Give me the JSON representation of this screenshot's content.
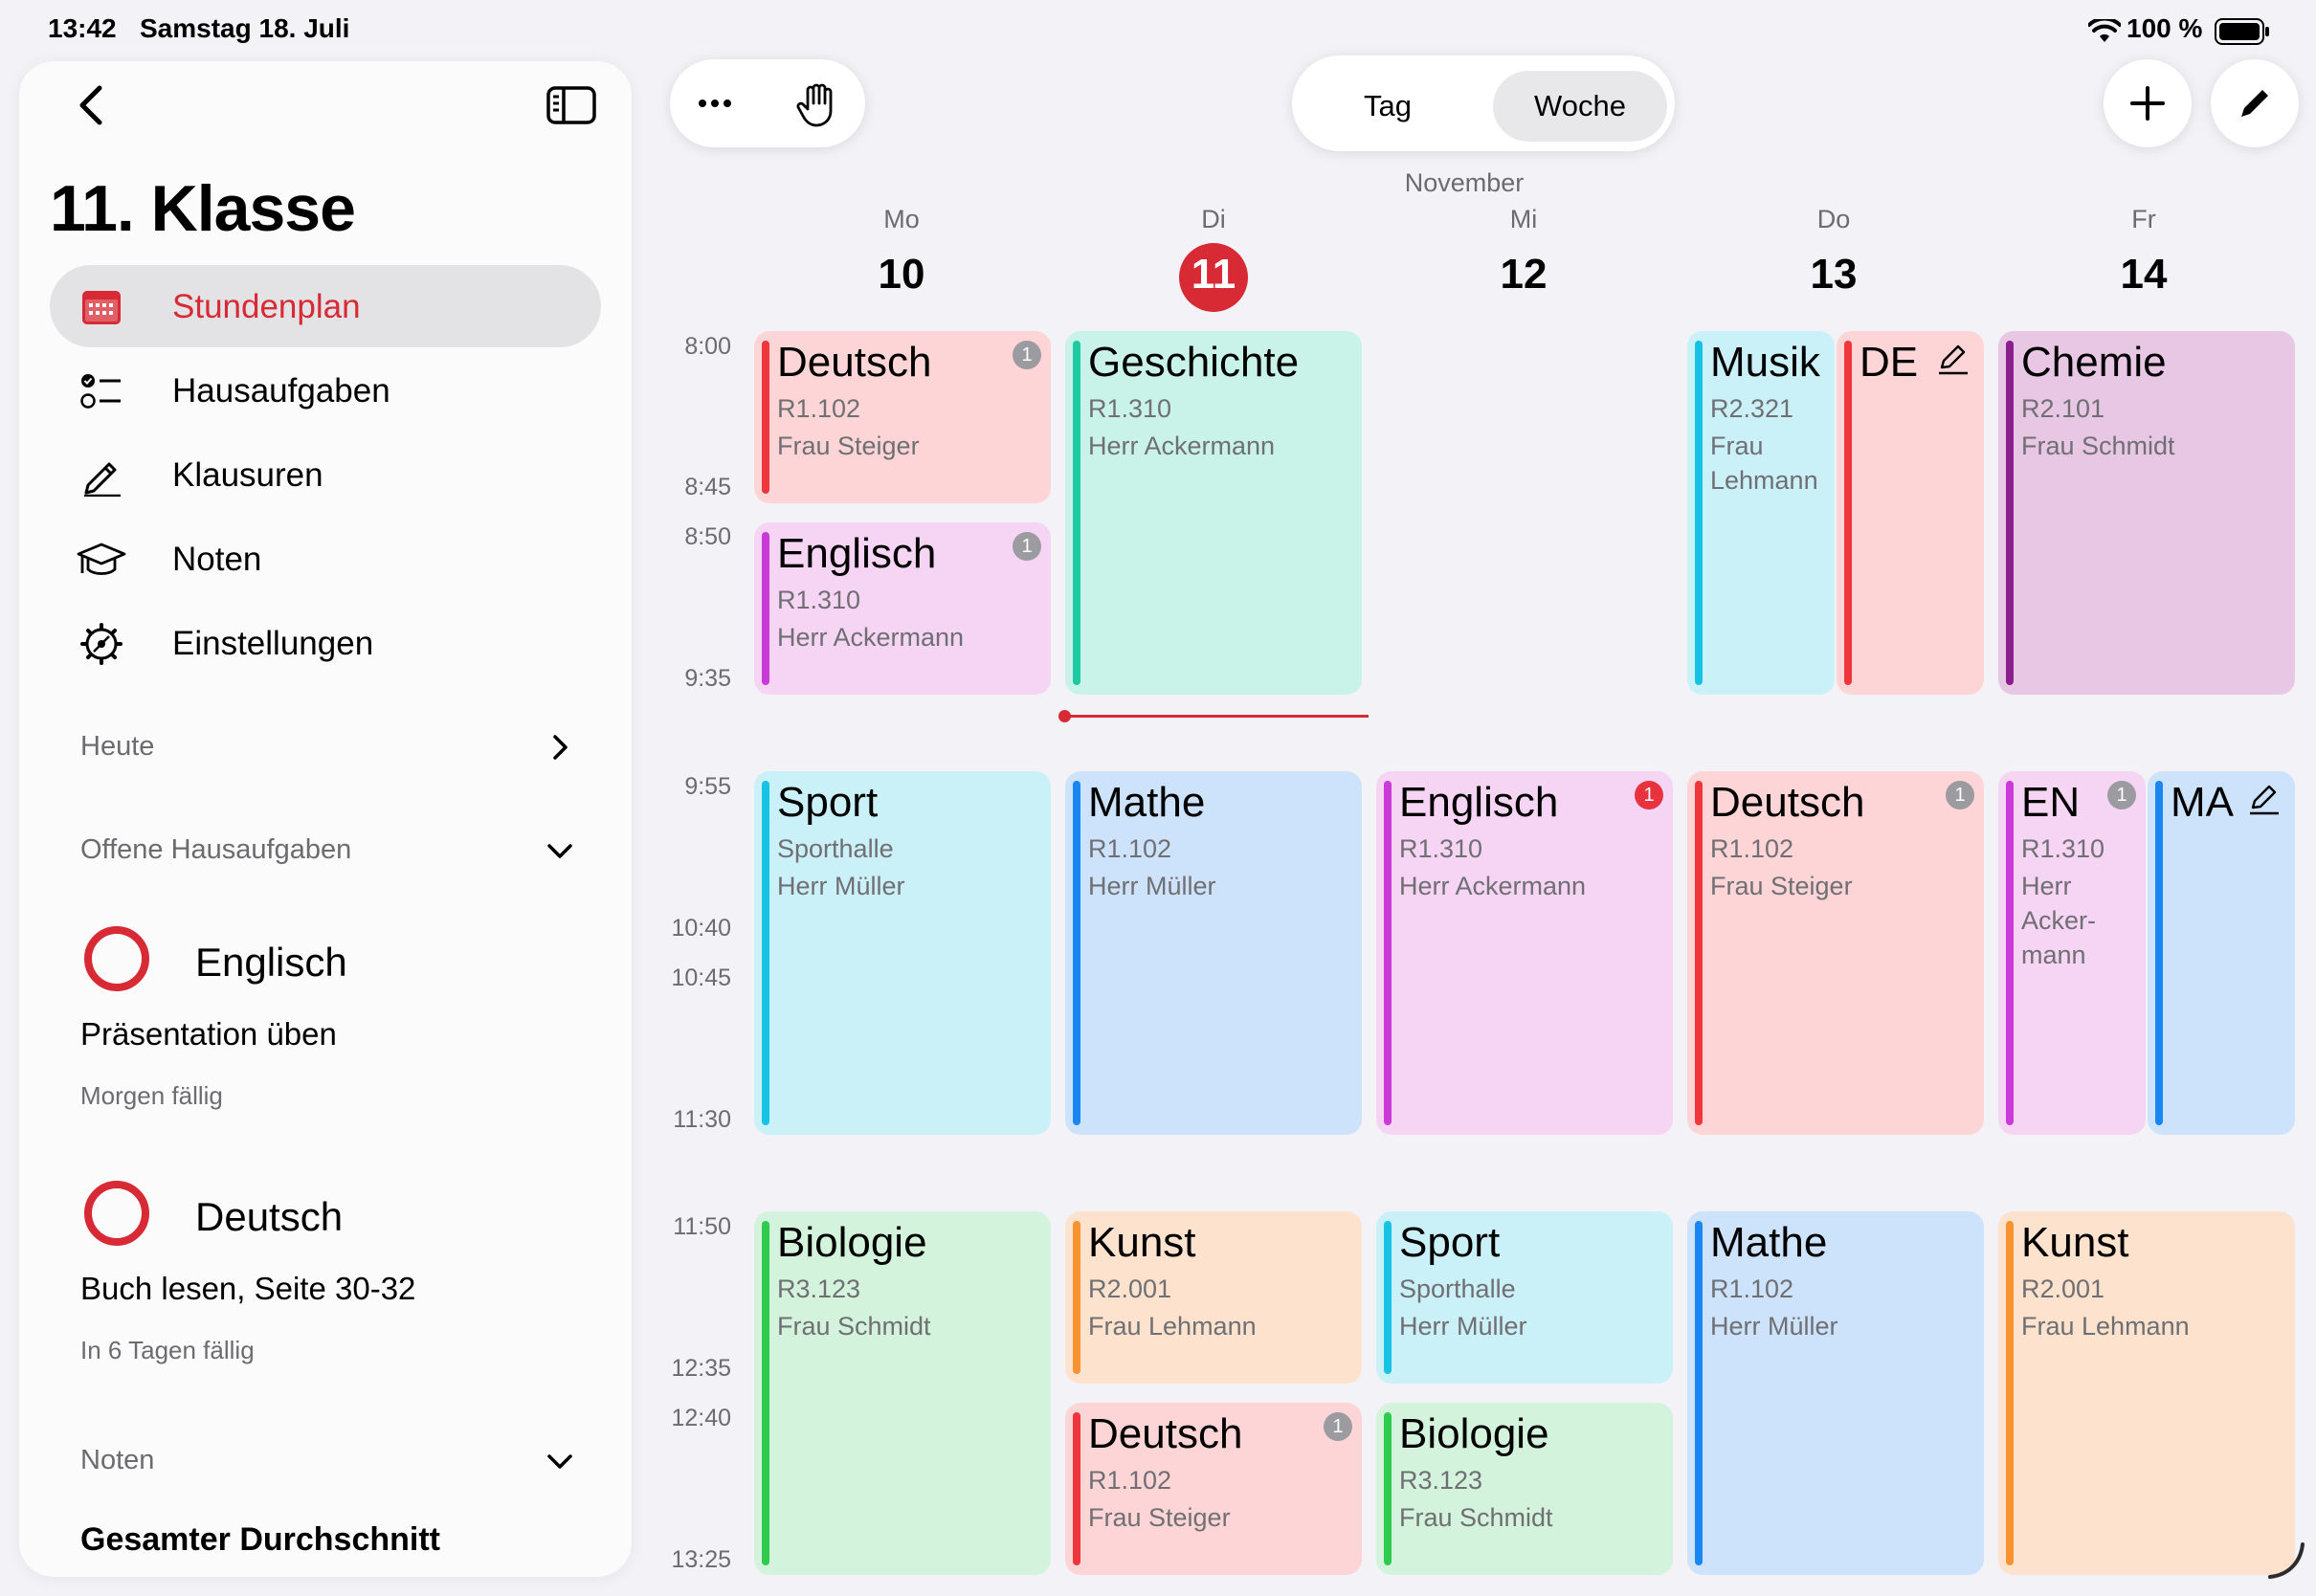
{
  "status_bar": {
    "time": "13:42",
    "date": "Samstag 18. Juli",
    "battery": "100 %"
  },
  "sidebar": {
    "title": "11. Klasse",
    "nav": [
      {
        "label": "Stundenplan",
        "icon": "calendar-icon",
        "active": true
      },
      {
        "label": "Hausaufgaben",
        "icon": "checklist-icon"
      },
      {
        "label": "Klausuren",
        "icon": "pencil-icon"
      },
      {
        "label": "Noten",
        "icon": "graduation-cap-icon"
      },
      {
        "label": "Einstellungen",
        "icon": "gear-icon"
      }
    ],
    "sections": {
      "today": "Heute",
      "open_homework": "Offene Hausaufgaben",
      "grades": "Noten"
    },
    "homework": [
      {
        "subject": "Englisch",
        "task": "Präsentation üben",
        "due": "Morgen fällig"
      },
      {
        "subject": "Deutsch",
        "task": "Buch lesen, Seite 30-32",
        "due": "In 6 Tagen fällig"
      }
    ],
    "grades_summary": "Gesamter Durchschnitt"
  },
  "toolbar": {
    "view_options": [
      "Tag",
      "Woche"
    ],
    "selected_view": "Woche"
  },
  "calendar": {
    "month": "November",
    "days": [
      {
        "name": "Mo",
        "number": "10"
      },
      {
        "name": "Di",
        "number": "11",
        "today": true
      },
      {
        "name": "Mi",
        "number": "12"
      },
      {
        "name": "Do",
        "number": "13"
      },
      {
        "name": "Fr",
        "number": "14"
      }
    ],
    "times": [
      "8:00",
      "8:45",
      "8:50",
      "9:35",
      "9:55",
      "10:40",
      "10:45",
      "11:30",
      "11:50",
      "12:35",
      "12:40",
      "13:25"
    ],
    "lessons": {
      "mo_1": {
        "subject": "Deutsch",
        "room": "R1.102",
        "teacher": "Frau Steiger",
        "badge": "1"
      },
      "mo_2": {
        "subject": "Englisch",
        "room": "R1.310",
        "teacher": "Herr Ackermann",
        "badge": "1"
      },
      "mo_3": {
        "subject": "Sport",
        "room": "Sporthalle",
        "teacher": "Herr Müller"
      },
      "mo_4": {
        "subject": "Biologie",
        "room": "R3.123",
        "teacher": "Frau Schmidt"
      },
      "di_1": {
        "subject": "Geschichte",
        "room": "R1.310",
        "teacher": "Herr Ackermann"
      },
      "di_2": {
        "subject": "Mathe",
        "room": "R1.102",
        "teacher": "Herr Müller"
      },
      "di_3": {
        "subject": "Kunst",
        "room": "R2.001",
        "teacher": "Frau Lehmann"
      },
      "di_4": {
        "subject": "Deutsch",
        "room": "R1.102",
        "teacher": "Frau Steiger",
        "badge": "1"
      },
      "mi_1": {
        "subject": "Englisch",
        "room": "R1.310",
        "teacher": "Herr Ackermann",
        "badge": "1"
      },
      "mi_2": {
        "subject": "Sport",
        "room": "Sporthalle",
        "teacher": "Herr Müller"
      },
      "mi_3": {
        "subject": "Biologie",
        "room": "R3.123",
        "teacher": "Frau Schmidt"
      },
      "do_1": {
        "subject": "Musik",
        "room": "R2.321",
        "teacher_line1": "Frau",
        "teacher_line2": "Lehmann"
      },
      "do_1b": {
        "subject": "DE"
      },
      "do_2": {
        "subject": "Deutsch",
        "room": "R1.102",
        "teacher": "Frau Steiger",
        "badge": "1"
      },
      "do_3": {
        "subject": "Mathe",
        "room": "R1.102",
        "teacher": "Herr Müller"
      },
      "fr_1": {
        "subject": "Chemie",
        "room": "R2.101",
        "teacher": "Frau Schmidt"
      },
      "fr_2": {
        "subject": "EN",
        "room": "R1.310",
        "teacher_line1": "Herr",
        "teacher_line2": "Acker-",
        "teacher_line3": "mann",
        "badge": "1"
      },
      "fr_2b": {
        "subject": "MA"
      },
      "fr_3": {
        "subject": "Kunst",
        "room": "R2.001",
        "teacher": "Frau Lehmann"
      }
    }
  },
  "colors": {
    "accent": "#d72a35",
    "deutsch_bg": "#fdd5d6",
    "deutsch_bar": "#f0363d",
    "englisch_bg": "#f5d4f4",
    "englisch_bar": "#c93ad9",
    "sport_bg": "#caf0f8",
    "sport_bar": "#17c2e3",
    "bio_bg": "#d4f3dc",
    "bio_bar": "#2ecb4f",
    "geschichte_bg": "#c9f3e8",
    "geschichte_bar": "#1cc9a0",
    "mathe_bg": "#cde3fb",
    "mathe_bar": "#1a86f2",
    "kunst_bg": "#fde3cd",
    "kunst_bar": "#f89330",
    "chemie_bg": "#e7c7e3",
    "chemie_bar": "#8b1e8d"
  }
}
